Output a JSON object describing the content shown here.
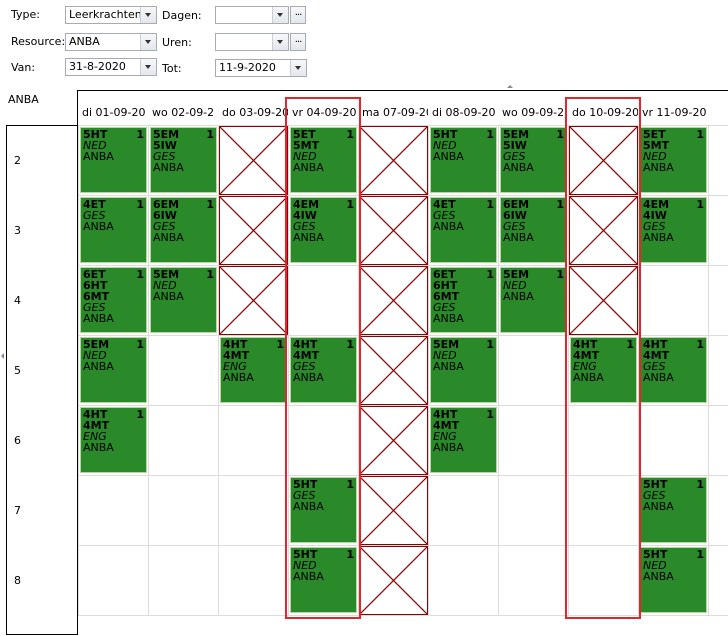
{
  "filters": {
    "type_label": "Type:",
    "type_value": "Leerkrachten",
    "resource_label": "Resource:",
    "resource_value": "ANBA",
    "van_label": "Van:",
    "van_value": "31-8-2020",
    "dagen_label": "Dagen:",
    "dagen_value": "",
    "uren_label": "Uren:",
    "uren_value": "",
    "tot_label": "Tot:",
    "tot_value": "11-9-2020",
    "ellipsis": "..."
  },
  "grid": {
    "title": "ANBA",
    "columns": [
      "di 01-09-20",
      "wo 02-09-2",
      "do 03-09-20",
      "vr 04-09-20",
      "ma 07-09-20",
      "di 08-09-20",
      "wo 09-09-2",
      "do 10-09-20",
      "vr 11-09-20"
    ],
    "rows": [
      "2",
      "3",
      "4",
      "5",
      "6",
      "7",
      "8"
    ],
    "blocks": [
      {
        "row": 0,
        "col": 0,
        "lines": [
          "5HT"
        ],
        "subject": "NED",
        "teacher": "ANBA",
        "count": "1"
      },
      {
        "row": 0,
        "col": 1,
        "lines": [
          "5EM",
          "5IW"
        ],
        "subject": "GES",
        "teacher": "ANBA",
        "count": "1"
      },
      {
        "row": 0,
        "col": 3,
        "lines": [
          "5ET",
          "5MT"
        ],
        "subject": "NED",
        "teacher": "ANBA",
        "count": "1"
      },
      {
        "row": 0,
        "col": 5,
        "lines": [
          "5HT"
        ],
        "subject": "NED",
        "teacher": "ANBA",
        "count": "1"
      },
      {
        "row": 0,
        "col": 6,
        "lines": [
          "5EM",
          "5IW"
        ],
        "subject": "GES",
        "teacher": "ANBA",
        "count": "1"
      },
      {
        "row": 0,
        "col": 8,
        "lines": [
          "5ET",
          "5MT"
        ],
        "subject": "NED",
        "teacher": "ANBA",
        "count": "1"
      },
      {
        "row": 1,
        "col": 0,
        "lines": [
          "4ET"
        ],
        "subject": "GES",
        "teacher": "ANBA",
        "count": "1"
      },
      {
        "row": 1,
        "col": 1,
        "lines": [
          "6EM",
          "6IW"
        ],
        "subject": "GES",
        "teacher": "ANBA",
        "count": "1"
      },
      {
        "row": 1,
        "col": 3,
        "lines": [
          "4EM",
          "4IW"
        ],
        "subject": "GES",
        "teacher": "ANBA",
        "count": "1"
      },
      {
        "row": 1,
        "col": 5,
        "lines": [
          "4ET"
        ],
        "subject": "GES",
        "teacher": "ANBA",
        "count": "1"
      },
      {
        "row": 1,
        "col": 6,
        "lines": [
          "6EM",
          "6IW"
        ],
        "subject": "GES",
        "teacher": "ANBA",
        "count": "1"
      },
      {
        "row": 1,
        "col": 8,
        "lines": [
          "4EM",
          "4IW"
        ],
        "subject": "GES",
        "teacher": "ANBA",
        "count": "1"
      },
      {
        "row": 2,
        "col": 0,
        "lines": [
          "6ET",
          "6HT",
          "6MT"
        ],
        "subject": "GES",
        "teacher": "ANBA",
        "count": "1"
      },
      {
        "row": 2,
        "col": 1,
        "lines": [
          "5EM"
        ],
        "subject": "NED",
        "teacher": "ANBA",
        "count": "1"
      },
      {
        "row": 2,
        "col": 5,
        "lines": [
          "6ET",
          "6HT",
          "6MT"
        ],
        "subject": "GES",
        "teacher": "ANBA",
        "count": "1"
      },
      {
        "row": 2,
        "col": 6,
        "lines": [
          "5EM"
        ],
        "subject": "NED",
        "teacher": "ANBA",
        "count": "1"
      },
      {
        "row": 3,
        "col": 0,
        "lines": [
          "5EM"
        ],
        "subject": "NED",
        "teacher": "ANBA",
        "count": "1"
      },
      {
        "row": 3,
        "col": 2,
        "lines": [
          "4HT",
          "4MT"
        ],
        "subject": "ENG",
        "teacher": "ANBA",
        "count": "1"
      },
      {
        "row": 3,
        "col": 3,
        "lines": [
          "4HT",
          "4MT"
        ],
        "subject": "GES",
        "teacher": "ANBA",
        "count": "1"
      },
      {
        "row": 3,
        "col": 5,
        "lines": [
          "5EM"
        ],
        "subject": "NED",
        "teacher": "ANBA",
        "count": "1"
      },
      {
        "row": 3,
        "col": 7,
        "lines": [
          "4HT",
          "4MT"
        ],
        "subject": "ENG",
        "teacher": "ANBA",
        "count": "1"
      },
      {
        "row": 3,
        "col": 8,
        "lines": [
          "4HT",
          "4MT"
        ],
        "subject": "GES",
        "teacher": "ANBA",
        "count": "1"
      },
      {
        "row": 4,
        "col": 0,
        "lines": [
          "4HT",
          "4MT"
        ],
        "subject": "ENG",
        "teacher": "ANBA",
        "count": "1"
      },
      {
        "row": 4,
        "col": 5,
        "lines": [
          "4HT",
          "4MT"
        ],
        "subject": "ENG",
        "teacher": "ANBA",
        "count": "1"
      },
      {
        "row": 5,
        "col": 3,
        "lines": [
          "5HT"
        ],
        "subject": "GES",
        "teacher": "ANBA",
        "count": "1"
      },
      {
        "row": 5,
        "col": 8,
        "lines": [
          "5HT"
        ],
        "subject": "GES",
        "teacher": "ANBA",
        "count": "1"
      },
      {
        "row": 6,
        "col": 3,
        "lines": [
          "5HT"
        ],
        "subject": "NED",
        "teacher": "ANBA",
        "count": "1"
      },
      {
        "row": 6,
        "col": 8,
        "lines": [
          "5HT"
        ],
        "subject": "NED",
        "teacher": "ANBA",
        "count": "1"
      }
    ],
    "blocked": [
      {
        "row": 0,
        "col": 2
      },
      {
        "row": 1,
        "col": 2
      },
      {
        "row": 2,
        "col": 2
      },
      {
        "row": 0,
        "col": 4
      },
      {
        "row": 1,
        "col": 4
      },
      {
        "row": 2,
        "col": 4
      },
      {
        "row": 3,
        "col": 4
      },
      {
        "row": 4,
        "col": 4
      },
      {
        "row": 5,
        "col": 4
      },
      {
        "row": 6,
        "col": 4
      },
      {
        "row": 0,
        "col": 7
      },
      {
        "row": 1,
        "col": 7
      },
      {
        "row": 2,
        "col": 7
      }
    ],
    "highlighted_columns": [
      3,
      7
    ],
    "colors": {
      "block_green": "#2a8a2a",
      "blocked_line": "#8b0000",
      "highlight_red": "#e2262b"
    }
  }
}
